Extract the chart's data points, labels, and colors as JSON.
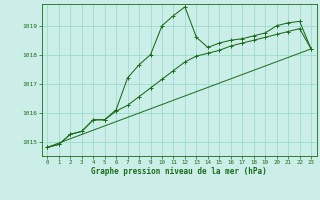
{
  "title": "Graphe pression niveau de la mer (hPa)",
  "bg_color": "#cceee8",
  "grid_color": "#99ddcc",
  "line_color": "#1a6b1a",
  "xlim": [
    -0.5,
    23.5
  ],
  "ylim": [
    1014.5,
    1019.75
  ],
  "yticks": [
    1015,
    1016,
    1017,
    1018,
    1019
  ],
  "xticks": [
    0,
    1,
    2,
    3,
    4,
    5,
    6,
    7,
    8,
    9,
    10,
    11,
    12,
    13,
    14,
    15,
    16,
    17,
    18,
    19,
    20,
    21,
    22,
    23
  ],
  "series1_x": [
    0,
    1,
    2,
    3,
    4,
    5,
    6,
    7,
    8,
    9,
    10,
    11,
    12,
    13,
    14,
    15,
    16,
    17,
    18,
    19,
    20,
    21,
    22,
    23
  ],
  "series1_y": [
    1014.8,
    1014.9,
    1015.25,
    1015.35,
    1015.75,
    1015.75,
    1016.1,
    1017.2,
    1017.65,
    1018.0,
    1019.0,
    1019.35,
    1019.65,
    1018.6,
    1018.25,
    1018.4,
    1018.5,
    1018.55,
    1018.65,
    1018.75,
    1019.0,
    1019.1,
    1019.15,
    1018.2
  ],
  "series2_x": [
    0,
    1,
    2,
    3,
    4,
    5,
    6,
    7,
    8,
    9,
    10,
    11,
    12,
    13,
    14,
    15,
    16,
    17,
    18,
    19,
    20,
    21,
    22,
    23
  ],
  "series2_y": [
    1014.8,
    1014.9,
    1015.25,
    1015.35,
    1015.75,
    1015.75,
    1016.05,
    1016.25,
    1016.55,
    1016.85,
    1017.15,
    1017.45,
    1017.75,
    1017.95,
    1018.05,
    1018.15,
    1018.3,
    1018.4,
    1018.5,
    1018.6,
    1018.7,
    1018.8,
    1018.9,
    1018.2
  ],
  "series3_x": [
    0,
    23
  ],
  "series3_y": [
    1014.8,
    1018.2
  ]
}
